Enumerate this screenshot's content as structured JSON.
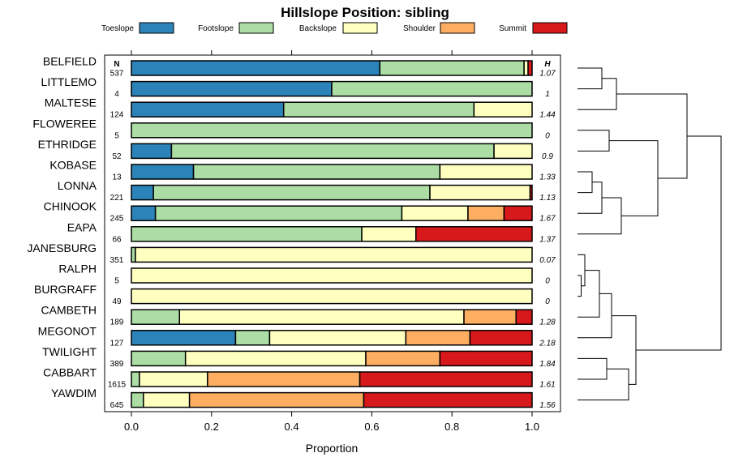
{
  "chart_data": {
    "type": "bar",
    "orientation": "horizontal",
    "stacked": true,
    "title": "Hillslope Position: sibling",
    "xlabel": "Proportion",
    "xlim": [
      0,
      1
    ],
    "xticks": [
      "0.0",
      "0.2",
      "0.4",
      "0.6",
      "0.8",
      "1.0"
    ],
    "xtick_values": [
      0,
      0.2,
      0.4,
      0.6,
      0.8,
      1.0
    ],
    "n_header": "N",
    "h_header": "H",
    "legend": [
      {
        "name": "Toeslope",
        "color": "#2B83BA"
      },
      {
        "name": "Footslope",
        "color": "#ABDDA4"
      },
      {
        "name": "Backslope",
        "color": "#FFFFBF"
      },
      {
        "name": "Shoulder",
        "color": "#FDAE61"
      },
      {
        "name": "Summit",
        "color": "#D7191C"
      }
    ],
    "categories": [
      "BELFIELD",
      "LITTLEMO",
      "MALTESE",
      "FLOWEREE",
      "ETHRIDGE",
      "KOBASE",
      "LONNA",
      "CHINOOK",
      "EAPA",
      "JANESBURG",
      "RALPH",
      "BURGRAFF",
      "CAMBETH",
      "MEGONOT",
      "TWILIGHT",
      "CABBART",
      "YAWDIM"
    ],
    "n": [
      "537",
      "4",
      "124",
      "5",
      "52",
      "13",
      "221",
      "245",
      "66",
      "351",
      "5",
      "49",
      "189",
      "127",
      "389",
      "1615",
      "645"
    ],
    "h": [
      "1.07",
      "1",
      "1.44",
      "0",
      "0.9",
      "1.33",
      "1.13",
      "1.67",
      "1.37",
      "0.07",
      "0",
      "0",
      "1.28",
      "2.18",
      "1.84",
      "1.61",
      "1.56"
    ],
    "series": [
      {
        "name": "Toeslope",
        "values": [
          0.62,
          0.5,
          0.38,
          0.0,
          0.1,
          0.155,
          0.055,
          0.06,
          0.0,
          0.0,
          0.0,
          0.0,
          0.0,
          0.26,
          0.0,
          0.0,
          0.0
        ]
      },
      {
        "name": "Footslope",
        "values": [
          0.36,
          0.5,
          0.475,
          1.0,
          0.805,
          0.615,
          0.69,
          0.615,
          0.575,
          0.01,
          0.0,
          0.0,
          0.12,
          0.085,
          0.135,
          0.02,
          0.03
        ]
      },
      {
        "name": "Backslope",
        "values": [
          0.01,
          0.0,
          0.145,
          0.0,
          0.095,
          0.23,
          0.25,
          0.165,
          0.135,
          0.99,
          1.0,
          1.0,
          0.71,
          0.34,
          0.45,
          0.17,
          0.115
        ]
      },
      {
        "name": "Shoulder",
        "values": [
          0.0,
          0.0,
          0.0,
          0.0,
          0.0,
          0.0,
          0.0,
          0.09,
          0.0,
          0.0,
          0.0,
          0.0,
          0.13,
          0.16,
          0.185,
          0.38,
          0.435
        ]
      },
      {
        "name": "Summit",
        "values": [
          0.01,
          0.0,
          0.0,
          0.0,
          0.0,
          0.0,
          0.005,
          0.07,
          0.29,
          0.0,
          0.0,
          0.0,
          0.04,
          0.155,
          0.23,
          0.43,
          0.42
        ]
      }
    ],
    "dendrogram": {
      "merges": [
        [
          0,
          1,
          1.0
        ],
        [
          2,
          17,
          1.6
        ],
        [
          3,
          4,
          1.3
        ],
        [
          5,
          6,
          0.6
        ],
        [
          20,
          7,
          1.0
        ],
        [
          21,
          8,
          1.8
        ],
        [
          19,
          22,
          3.3
        ],
        [
          10,
          11,
          0.15
        ],
        [
          9,
          24,
          0.3
        ],
        [
          25,
          12,
          0.9
        ],
        [
          26,
          13,
          1.4
        ],
        [
          14,
          15,
          1.2
        ],
        [
          28,
          16,
          2.1
        ],
        [
          18,
          23,
          4.5
        ],
        [
          27,
          29,
          2.4
        ],
        [
          30,
          31,
          5.9
        ]
      ]
    }
  }
}
